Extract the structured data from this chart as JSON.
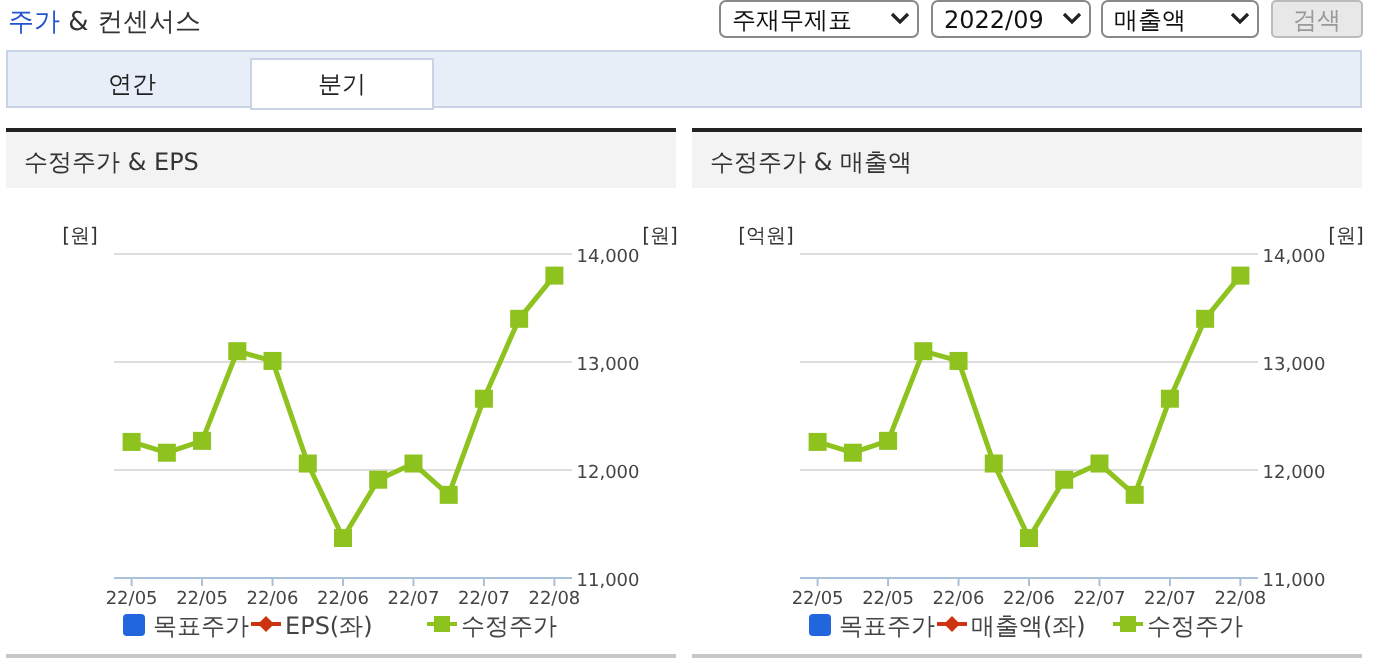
{
  "chart_data": [
    {
      "type": "other",
      "title": "주가 & 컨센서스",
      "annotations": [
        "주재무제표",
        "2022/09",
        "매출액",
        "검색",
        "연간",
        "분기"
      ]
    },
    {
      "type": "line",
      "title": "수정주가 & EPS",
      "categories": [
        "22/05",
        null,
        "22/05",
        null,
        "22/06",
        null,
        "22/06",
        null,
        "22/07",
        null,
        "22/07",
        null,
        "22/08"
      ],
      "ylabel": "[원]",
      "y2label": "[원]",
      "y2lim": [
        11000,
        14000
      ],
      "y2ticks": [
        {
          "value": 11000,
          "label": "11,000"
        },
        {
          "value": 12000,
          "label": "12,000"
        },
        {
          "value": 13000,
          "label": "13,000"
        },
        {
          "value": 14000,
          "label": "14,000"
        }
      ],
      "grid": "y",
      "legend": "bottom",
      "series": [
        {
          "name": "목표주가",
          "type": "bar",
          "color": "#2266dd",
          "values": [
            null,
            null,
            null,
            null,
            null,
            null,
            null,
            null,
            null,
            null,
            null,
            null,
            null
          ]
        },
        {
          "name": "EPS(좌)",
          "type": "line",
          "color": "#cc3311",
          "marker": "diamond",
          "values": [
            null,
            null,
            null,
            null,
            null,
            null,
            null,
            null,
            null,
            null,
            null,
            null,
            null
          ]
        },
        {
          "name": "수정주가",
          "type": "line",
          "color": "#8dc21f",
          "marker": "square",
          "axis": "y2",
          "values": [
            12260,
            12160,
            12270,
            13100,
            13010,
            12060,
            11370,
            11910,
            12060,
            11770,
            12660,
            13400,
            13800
          ]
        }
      ]
    },
    {
      "type": "line",
      "title": "수정주가 & 매출액",
      "categories": [
        "22/05",
        null,
        "22/05",
        null,
        "22/06",
        null,
        "22/06",
        null,
        "22/07",
        null,
        "22/07",
        null,
        "22/08"
      ],
      "ylabel": "[억원]",
      "y2label": "[원]",
      "y2lim": [
        11000,
        14000
      ],
      "y2ticks": [
        {
          "value": 11000,
          "label": "11,000"
        },
        {
          "value": 12000,
          "label": "12,000"
        },
        {
          "value": 13000,
          "label": "13,000"
        },
        {
          "value": 14000,
          "label": "14,000"
        }
      ],
      "grid": "y",
      "legend": "bottom",
      "series": [
        {
          "name": "목표주가",
          "type": "bar",
          "color": "#2266dd",
          "values": [
            null,
            null,
            null,
            null,
            null,
            null,
            null,
            null,
            null,
            null,
            null,
            null,
            null
          ]
        },
        {
          "name": "매출액(좌)",
          "type": "line",
          "color": "#cc3311",
          "marker": "diamond",
          "values": [
            null,
            null,
            null,
            null,
            null,
            null,
            null,
            null,
            null,
            null,
            null,
            null,
            null
          ]
        },
        {
          "name": "수정주가",
          "type": "line",
          "color": "#8dc21f",
          "marker": "square",
          "axis": "y2",
          "values": [
            12260,
            12160,
            12270,
            13100,
            13010,
            12060,
            11370,
            11910,
            12060,
            11770,
            12660,
            13400,
            13800
          ]
        }
      ]
    }
  ]
}
